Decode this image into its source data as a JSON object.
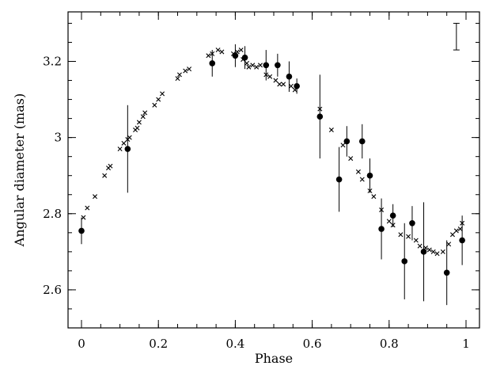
{
  "chart_data": {
    "type": "scatter",
    "xlabel": "Phase",
    "ylabel": "Angular diameter (mas)",
    "xlim": [
      -0.035,
      1.035
    ],
    "ylim": [
      2.5,
      3.33
    ],
    "xticks_major": [
      0,
      0.2,
      0.4,
      0.6,
      0.8,
      1
    ],
    "xtick_labels": [
      "0",
      "0.2",
      "0.4",
      "0.6",
      "0.8",
      "1"
    ],
    "yticks_major": [
      2.6,
      2.8,
      3.0,
      3.2
    ],
    "ytick_labels": [
      "2.6",
      "2.8",
      "3",
      "3.2"
    ],
    "grid": false,
    "legend": "none",
    "series": [
      {
        "marker": "filled-circle",
        "points": [
          {
            "x": 0.0,
            "y": 2.755,
            "err": 0.035
          },
          {
            "x": 0.12,
            "y": 2.97,
            "err": 0.115
          },
          {
            "x": 0.34,
            "y": 3.195,
            "err": 0.035
          },
          {
            "x": 0.4,
            "y": 3.215,
            "err": 0.03
          },
          {
            "x": 0.425,
            "y": 3.21,
            "err": 0.03
          },
          {
            "x": 0.48,
            "y": 3.19,
            "err": 0.04
          },
          {
            "x": 0.51,
            "y": 3.19,
            "err": 0.03
          },
          {
            "x": 0.54,
            "y": 3.16,
            "err": 0.04
          },
          {
            "x": 0.56,
            "y": 3.135,
            "err": 0.02
          },
          {
            "x": 0.62,
            "y": 3.055,
            "err": 0.11
          },
          {
            "x": 0.67,
            "y": 2.89,
            "err": 0.085
          },
          {
            "x": 0.69,
            "y": 2.99,
            "err": 0.04
          },
          {
            "x": 0.73,
            "y": 2.99,
            "err": 0.045
          },
          {
            "x": 0.75,
            "y": 2.9,
            "err": 0.045
          },
          {
            "x": 0.78,
            "y": 2.76,
            "err": 0.08
          },
          {
            "x": 0.81,
            "y": 2.795,
            "err": 0.03
          },
          {
            "x": 0.84,
            "y": 2.675,
            "err": 0.1
          },
          {
            "x": 0.86,
            "y": 2.775,
            "err": 0.045
          },
          {
            "x": 0.89,
            "y": 2.7,
            "err": 0.13
          },
          {
            "x": 0.95,
            "y": 2.645,
            "err": 0.085
          },
          {
            "x": 0.99,
            "y": 2.73,
            "err": 0.065
          }
        ]
      },
      {
        "marker": "cross",
        "points": [
          {
            "x": 0.005,
            "y": 2.79
          },
          {
            "x": 0.015,
            "y": 2.815
          },
          {
            "x": 0.035,
            "y": 2.845
          },
          {
            "x": 0.06,
            "y": 2.9
          },
          {
            "x": 0.07,
            "y": 2.92
          },
          {
            "x": 0.075,
            "y": 2.925
          },
          {
            "x": 0.1,
            "y": 2.97
          },
          {
            "x": 0.11,
            "y": 2.985
          },
          {
            "x": 0.12,
            "y": 2.995
          },
          {
            "x": 0.125,
            "y": 3.0
          },
          {
            "x": 0.14,
            "y": 3.02
          },
          {
            "x": 0.145,
            "y": 3.025
          },
          {
            "x": 0.15,
            "y": 3.04
          },
          {
            "x": 0.16,
            "y": 3.055
          },
          {
            "x": 0.165,
            "y": 3.065
          },
          {
            "x": 0.19,
            "y": 3.085
          },
          {
            "x": 0.2,
            "y": 3.1
          },
          {
            "x": 0.21,
            "y": 3.115
          },
          {
            "x": 0.25,
            "y": 3.155
          },
          {
            "x": 0.255,
            "y": 3.165
          },
          {
            "x": 0.27,
            "y": 3.175
          },
          {
            "x": 0.28,
            "y": 3.18
          },
          {
            "x": 0.33,
            "y": 3.215
          },
          {
            "x": 0.34,
            "y": 3.22
          },
          {
            "x": 0.355,
            "y": 3.23
          },
          {
            "x": 0.365,
            "y": 3.225
          },
          {
            "x": 0.395,
            "y": 3.22
          },
          {
            "x": 0.405,
            "y": 3.225
          },
          {
            "x": 0.415,
            "y": 3.23
          },
          {
            "x": 0.42,
            "y": 3.205
          },
          {
            "x": 0.43,
            "y": 3.195
          },
          {
            "x": 0.435,
            "y": 3.185
          },
          {
            "x": 0.445,
            "y": 3.19
          },
          {
            "x": 0.455,
            "y": 3.185
          },
          {
            "x": 0.465,
            "y": 3.19
          },
          {
            "x": 0.48,
            "y": 3.165
          },
          {
            "x": 0.49,
            "y": 3.16
          },
          {
            "x": 0.505,
            "y": 3.15
          },
          {
            "x": 0.515,
            "y": 3.14
          },
          {
            "x": 0.525,
            "y": 3.14
          },
          {
            "x": 0.545,
            "y": 3.135
          },
          {
            "x": 0.555,
            "y": 3.125
          },
          {
            "x": 0.62,
            "y": 3.075
          },
          {
            "x": 0.65,
            "y": 3.02
          },
          {
            "x": 0.68,
            "y": 2.98
          },
          {
            "x": 0.7,
            "y": 2.945
          },
          {
            "x": 0.72,
            "y": 2.91
          },
          {
            "x": 0.73,
            "y": 2.89
          },
          {
            "x": 0.75,
            "y": 2.86
          },
          {
            "x": 0.76,
            "y": 2.845
          },
          {
            "x": 0.78,
            "y": 2.81
          },
          {
            "x": 0.8,
            "y": 2.78
          },
          {
            "x": 0.81,
            "y": 2.77
          },
          {
            "x": 0.83,
            "y": 2.745
          },
          {
            "x": 0.85,
            "y": 2.74
          },
          {
            "x": 0.87,
            "y": 2.73
          },
          {
            "x": 0.88,
            "y": 2.715
          },
          {
            "x": 0.895,
            "y": 2.71
          },
          {
            "x": 0.905,
            "y": 2.705
          },
          {
            "x": 0.915,
            "y": 2.7
          },
          {
            "x": 0.925,
            "y": 2.695
          },
          {
            "x": 0.94,
            "y": 2.7
          },
          {
            "x": 0.955,
            "y": 2.72
          },
          {
            "x": 0.965,
            "y": 2.745
          },
          {
            "x": 0.975,
            "y": 2.755
          },
          {
            "x": 0.985,
            "y": 2.76
          },
          {
            "x": 0.99,
            "y": 2.775
          }
        ]
      }
    ],
    "annotations": [
      {
        "type": "error-bar-scale",
        "x": 0.975,
        "y": 3.265,
        "half_height": 0.035
      }
    ]
  }
}
